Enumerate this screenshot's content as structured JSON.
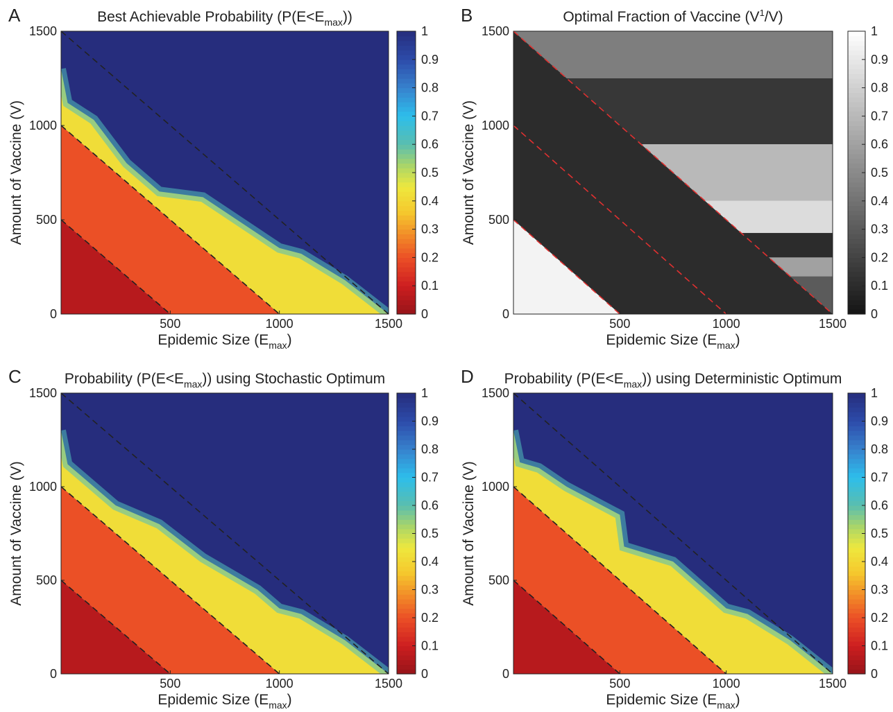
{
  "chart_data": [
    {
      "id": "A",
      "panel_label": "A",
      "type": "heatmap",
      "title_main": "Best Achievable Probability (P(E<E",
      "title_sub": "max",
      "title_end": "))",
      "xlabel_main": "Epidemic Size (E",
      "xlabel_sub": "max",
      "xlabel_end": ")",
      "ylabel": "Amount of Vaccine (V)",
      "xlim": [
        0,
        1500
      ],
      "ylim": [
        0,
        1500
      ],
      "xticks": [
        "500",
        "1000",
        "1500"
      ],
      "yticks": [
        "0",
        "500",
        "1000",
        "1500"
      ],
      "colormap": "jet",
      "colorbar_ticks": [
        "0",
        "0.1",
        "0.2",
        "0.3",
        "0.4",
        "0.5",
        "0.6",
        "0.7",
        "0.8",
        "0.9",
        "1"
      ],
      "dashed_lines": [
        {
          "from": [
            0,
            500
          ],
          "to": [
            500,
            0
          ]
        },
        {
          "from": [
            0,
            1000
          ],
          "to": [
            1000,
            0
          ]
        },
        {
          "from": [
            0,
            1500
          ],
          "to": [
            1500,
            0
          ]
        }
      ],
      "boundary": [
        [
          0,
          1300
        ],
        [
          30,
          1120
        ],
        [
          150,
          1030
        ],
        [
          300,
          800
        ],
        [
          450,
          650
        ],
        [
          650,
          620
        ],
        [
          1000,
          350
        ],
        [
          1100,
          320
        ],
        [
          1300,
          180
        ],
        [
          1500,
          0
        ]
      ]
    },
    {
      "id": "B",
      "panel_label": "B",
      "type": "heatmap",
      "title_main": "Optimal Fraction of Vaccine (V",
      "title_sup": "1",
      "title_end": "/V)",
      "xlabel_main": "Epidemic Size (E",
      "xlabel_sub": "max",
      "xlabel_end": ")",
      "ylabel": "Amount of Vaccine (V)",
      "xlim": [
        0,
        1500
      ],
      "ylim": [
        0,
        1500
      ],
      "xticks": [
        "500",
        "1000",
        "1500"
      ],
      "yticks": [
        "0",
        "500",
        "1000",
        "1500"
      ],
      "colormap": "gray",
      "colorbar_ticks": [
        "0",
        "0.1",
        "0.2",
        "0.3",
        "0.4",
        "0.5",
        "0.6",
        "0.7",
        "0.8",
        "0.9",
        "1"
      ],
      "dashed_lines": [
        {
          "from": [
            0,
            500
          ],
          "to": [
            500,
            0
          ]
        },
        {
          "from": [
            0,
            1000
          ],
          "to": [
            1000,
            0
          ]
        },
        {
          "from": [
            0,
            1500
          ],
          "to": [
            1500,
            0
          ]
        }
      ],
      "bands": [
        {
          "v_from": 1250,
          "v_to": 1500,
          "value": 0.45
        },
        {
          "v_from": 900,
          "v_to": 1250,
          "value": 0.15
        },
        {
          "v_from": 600,
          "v_to": 900,
          "value": 0.7
        },
        {
          "v_from": 430,
          "v_to": 600,
          "value": 0.85
        },
        {
          "v_from": 300,
          "v_to": 430,
          "value": 0.1
        },
        {
          "v_from": 200,
          "v_to": 300,
          "value": 0.6
        },
        {
          "v_from": 0,
          "v_to": 200,
          "value": 0.3
        }
      ]
    },
    {
      "id": "C",
      "panel_label": "C",
      "type": "heatmap",
      "title_main": "Probability (P(E<E",
      "title_sub": "max",
      "title_end": ")) using Stochastic Optimum",
      "xlabel_main": "Epidemic Size (E",
      "xlabel_sub": "max",
      "xlabel_end": ")",
      "ylabel": "Amount of Vaccine (V)",
      "xlim": [
        0,
        1500
      ],
      "ylim": [
        0,
        1500
      ],
      "xticks": [
        "500",
        "1000",
        "1500"
      ],
      "yticks": [
        "0",
        "500",
        "1000",
        "1500"
      ],
      "colormap": "jet",
      "colorbar_ticks": [
        "0",
        "0.1",
        "0.2",
        "0.3",
        "0.4",
        "0.5",
        "0.6",
        "0.7",
        "0.8",
        "0.9",
        "1"
      ],
      "dashed_lines": [
        {
          "from": [
            0,
            500
          ],
          "to": [
            500,
            0
          ]
        },
        {
          "from": [
            0,
            1000
          ],
          "to": [
            1000,
            0
          ]
        },
        {
          "from": [
            0,
            1500
          ],
          "to": [
            1500,
            0
          ]
        }
      ],
      "boundary": [
        [
          0,
          1300
        ],
        [
          30,
          1120
        ],
        [
          120,
          1030
        ],
        [
          250,
          900
        ],
        [
          450,
          800
        ],
        [
          650,
          620
        ],
        [
          900,
          450
        ],
        [
          1000,
          350
        ],
        [
          1100,
          320
        ],
        [
          1300,
          180
        ],
        [
          1500,
          0
        ]
      ]
    },
    {
      "id": "D",
      "panel_label": "D",
      "type": "heatmap",
      "title_main": "Probability (P(E<E",
      "title_sub": "max",
      "title_end": ")) using Deterministic Optimum",
      "xlabel_main": "Epidemic Size (E",
      "xlabel_sub": "max",
      "xlabel_end": ")",
      "ylabel": "Amount of Vaccine (V)",
      "xlim": [
        0,
        1500
      ],
      "ylim": [
        0,
        1500
      ],
      "xticks": [
        "500",
        "1000",
        "1500"
      ],
      "yticks": [
        "0",
        "500",
        "1000",
        "1500"
      ],
      "colormap": "jet",
      "colorbar_ticks": [
        "0",
        "0.1",
        "0.2",
        "0.3",
        "0.4",
        "0.5",
        "0.6",
        "0.7",
        "0.8",
        "0.9",
        "1"
      ],
      "dashed_lines": [
        {
          "from": [
            0,
            500
          ],
          "to": [
            500,
            0
          ]
        },
        {
          "from": [
            0,
            1000
          ],
          "to": [
            1000,
            0
          ]
        },
        {
          "from": [
            0,
            1500
          ],
          "to": [
            1500,
            0
          ]
        }
      ],
      "boundary": [
        [
          0,
          1300
        ],
        [
          30,
          1130
        ],
        [
          120,
          1100
        ],
        [
          250,
          1000
        ],
        [
          500,
          850
        ],
        [
          520,
          680
        ],
        [
          750,
          600
        ],
        [
          1000,
          350
        ],
        [
          1100,
          320
        ],
        [
          1300,
          180
        ],
        [
          1500,
          0
        ]
      ]
    }
  ]
}
